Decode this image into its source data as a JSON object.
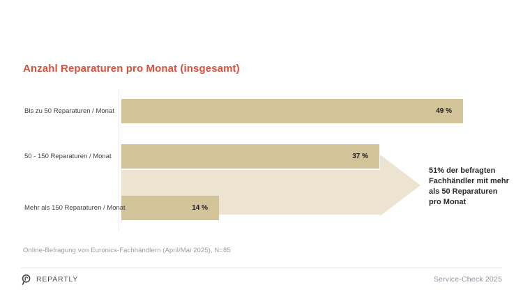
{
  "title": "Anzahl Reparaturen pro Monat (insgesamt)",
  "chart_data": {
    "type": "bar",
    "orientation": "horizontal",
    "title": "Anzahl Reparaturen pro Monat (insgesamt)",
    "categories": [
      "Bis zu 50 Reparaturen / Monat",
      "50 - 150 Reparaturen / Monat",
      "Mehr als 150 Reparaturen / Monat"
    ],
    "values": [
      49,
      37,
      14
    ],
    "value_labels": [
      "49 %",
      "37 %",
      "14 %"
    ],
    "unit": "%",
    "xlim": [
      0,
      50
    ],
    "grid": false,
    "legend": "none",
    "bar_color": "#d2c398"
  },
  "annotation": {
    "text": "51% der befragten Fachhändler mit mehr als 50 Reparaturen pro Monat",
    "text_multiline": "51% der befragten\nFachhändler mit mehr\nals 50 Reparaturen\npro Monat",
    "arrow_color": "#ece4d1"
  },
  "footnote": "Online-Befragung von Euronics-Fachhändlern (April/Mai 2025), N=85",
  "footer": {
    "brand": "REPARTLY",
    "right_text": "Service-Check 2025"
  },
  "colors": {
    "title": "#d7523c",
    "bar": "#d2c398",
    "arrow": "#ece4d1",
    "category_label": "#3f3f3f",
    "value_label": "#1a1a1a",
    "footnote": "#9b9b9b",
    "footer_text": "#8b91a0",
    "brand_text": "#4a4f55"
  }
}
